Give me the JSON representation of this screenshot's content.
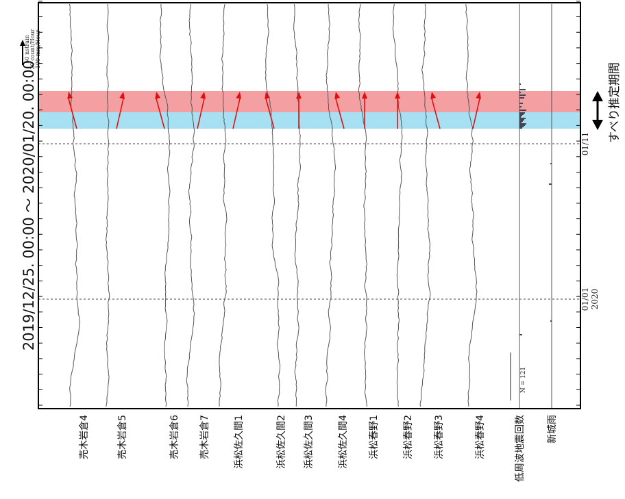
{
  "chart_data": {
    "type": "line",
    "title": "2019/12/25. 00:00  ～  2020/01/20. 00:00",
    "scale_note": [
      "50 nstrain",
      "20 count/Hour",
      "100 mm/Hour"
    ],
    "date_marks": [
      {
        "lines": [
          "01/01",
          "2020"
        ],
        "date": "2020-01-01"
      },
      {
        "lines": [
          "01/11"
        ],
        "date": "2020-01-11"
      }
    ],
    "slip_period_label": "すべり推定期間",
    "lfe_count_label": "N =   121",
    "highlight_bands": [
      {
        "color": "#f4a0a2",
        "from": "2020-01-13 12:00",
        "to": "2020-01-15 00:00"
      },
      {
        "color": "#a6e0f2",
        "from": "2020-01-12 06:00",
        "to": "2020-01-13 12:00"
      }
    ],
    "series": [
      {
        "name": "売木岩倉4",
        "arrow": true
      },
      {
        "name": "売木岩倉5",
        "arrow": true
      },
      {
        "name": "売木岩倉6",
        "arrow": true
      },
      {
        "name": "売木岩倉7",
        "arrow": true
      },
      {
        "name": "浜松佐久間1",
        "arrow": true
      },
      {
        "name": "浜松佐久間2",
        "arrow": true
      },
      {
        "name": "浜松佐久間3",
        "arrow": true
      },
      {
        "name": "浜松佐久間4",
        "arrow": true
      },
      {
        "name": "浜松春野1",
        "arrow": true
      },
      {
        "name": "浜松春野2",
        "arrow": true
      },
      {
        "name": "浜松春野3",
        "arrow": true
      },
      {
        "name": "浜松春野4",
        "arrow": true
      },
      {
        "name": "低周波地震回数",
        "arrow": false
      },
      {
        "name": "新城雨",
        "arrow": false
      }
    ],
    "colors": {
      "arrow": "#e01010",
      "trace": "#555555",
      "frame": "#000000"
    }
  }
}
